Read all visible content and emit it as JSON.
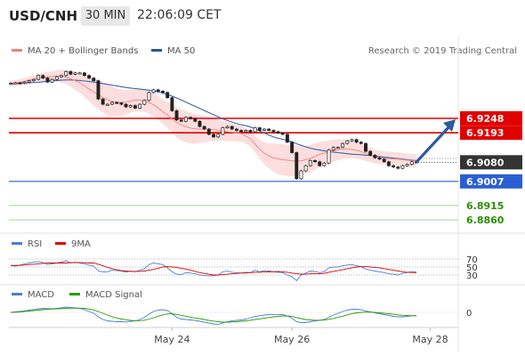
{
  "header": {
    "symbol": "USD/CNH",
    "timeframe": "30 MIN",
    "time": "22:06:09 CET"
  },
  "legend_main": [
    {
      "label": "MA 20 + Bollinger Bands",
      "color": "#f08080"
    },
    {
      "label": "MA 50",
      "color": "#2a5599"
    }
  ],
  "legend_rsi": [
    {
      "label": "RSI",
      "color": "#4a7fd4"
    },
    {
      "label": "9MA",
      "color": "#e00000"
    }
  ],
  "legend_macd": [
    {
      "label": "MACD",
      "color": "#4a7fd4"
    },
    {
      "label": "MACD Signal",
      "color": "#2a9d00"
    }
  ],
  "credit": "Research © 2019 Trading Central",
  "chart_data": {
    "type": "candlestick",
    "price_range": [
      6.88,
      6.944
    ],
    "levels": [
      {
        "value": 6.9248,
        "label": "6.9248",
        "color": "#e00000",
        "kind": "resistance"
      },
      {
        "value": 6.9193,
        "label": "6.9193",
        "color": "#e00000",
        "kind": "resistance"
      },
      {
        "value": 6.908,
        "label": "6.9080",
        "color": "#333333",
        "kind": "current"
      },
      {
        "value": 6.9007,
        "label": "6.9007",
        "color": "#2a5fd4",
        "kind": "pivot"
      },
      {
        "value": 6.8915,
        "label": "6.8915",
        "color": "#2a8f00",
        "kind": "support"
      },
      {
        "value": 6.886,
        "label": "6.8860",
        "color": "#2a8f00",
        "kind": "support"
      }
    ],
    "x_labels": [
      {
        "label": "May 24",
        "index": 35
      },
      {
        "label": "May 26",
        "index": 61
      },
      {
        "label": "May 28",
        "index": 91
      }
    ],
    "close": [
      6.9383,
      6.9384,
      6.9382,
      6.9387,
      6.9392,
      6.9397,
      6.9412,
      6.9402,
      6.9387,
      6.9397,
      6.9407,
      6.9412,
      6.9427,
      6.9417,
      6.9422,
      6.9422,
      6.9412,
      6.9402,
      6.9392,
      6.9322,
      6.9302,
      6.9302,
      6.9309,
      6.9307,
      6.9302,
      6.9292,
      6.9297,
      6.9287,
      6.9302,
      6.9317,
      6.9347,
      6.9357,
      6.9352,
      6.9347,
      6.9327,
      6.9277,
      6.9242,
      6.9237,
      6.9252,
      6.9247,
      6.9237,
      6.9217,
      6.9207,
      6.9187,
      6.9177,
      6.9187,
      6.9212,
      6.9217,
      6.9207,
      6.9202,
      6.9197,
      6.9202,
      6.9197,
      6.9212,
      6.9202,
      6.9207,
      6.9202,
      6.9197,
      6.9192,
      6.9187,
      6.9157,
      6.9117,
      6.9017,
      6.9047,
      6.9067,
      6.9087,
      6.9082,
      6.9067,
      6.9077,
      6.9127,
      6.9137,
      6.9137,
      6.9152,
      6.9162,
      6.9167,
      6.9157,
      6.9152,
      6.9122,
      6.9107,
      6.9097,
      6.9092,
      6.9082,
      6.9067,
      6.9062,
      6.9057,
      6.9067,
      6.9072,
      6.9082,
      6.908
    ],
    "ma20": [
      6.9382,
      6.9383,
      6.9386,
      6.939,
      6.9394,
      6.9398,
      6.9402,
      6.9404,
      6.9406,
      6.9408,
      6.941,
      6.941,
      6.9406,
      6.94,
      6.9392,
      6.9384,
      6.9372,
      6.936,
      6.9349,
      6.9339,
      6.9328,
      6.9319,
      6.9313,
      6.931,
      6.9309,
      6.931,
      6.9314,
      6.9318,
      6.9318,
      6.9315,
      6.9309,
      6.93,
      6.9288,
      6.9273,
      6.9261,
      6.9246,
      6.9233,
      6.9223,
      6.9216,
      6.9211,
      6.9208,
      6.9207,
      6.9207,
      6.9206,
      6.9205,
      6.9203,
      6.92,
      6.9197,
      6.9195,
      6.9192,
      6.919,
      6.918,
      6.917,
      6.915,
      6.913,
      6.9115,
      6.9105,
      6.9097,
      6.9093,
      6.909,
      6.9088,
      6.9086,
      6.9085,
      6.9086,
      6.909,
      6.9095,
      6.9102,
      6.911,
      6.9115,
      6.912,
      6.9124,
      6.9128,
      6.913,
      6.9131,
      6.9129,
      6.9126,
      6.9121,
      6.9114,
      6.9108,
      6.9102,
      6.9098,
      6.9096,
      6.9094,
      6.9093,
      6.9092,
      6.909,
      6.9088,
      6.9086,
      6.9085
    ],
    "band_width": [
      0.001,
      0.0011,
      0.0012,
      0.0013,
      0.0014,
      0.0015,
      0.0017,
      0.0018,
      0.0019,
      0.002,
      0.0022,
      0.0024,
      0.0027,
      0.003,
      0.0034,
      0.0038,
      0.0042,
      0.0047,
      0.0052,
      0.0056,
      0.0058,
      0.0058,
      0.0056,
      0.0053,
      0.005,
      0.0047,
      0.0044,
      0.0043,
      0.0043,
      0.0043,
      0.0043,
      0.0044,
      0.0045,
      0.0047,
      0.005,
      0.0054,
      0.0057,
      0.006,
      0.006,
      0.0059,
      0.0057,
      0.0054,
      0.005,
      0.0046,
      0.0043,
      0.004,
      0.0038,
      0.0036,
      0.0034,
      0.0032,
      0.0031,
      0.003,
      0.003,
      0.0032,
      0.0036,
      0.0042,
      0.0048,
      0.0054,
      0.0058,
      0.006,
      0.0061,
      0.006,
      0.0058,
      0.0056,
      0.0054,
      0.0052,
      0.005,
      0.0048,
      0.0046,
      0.0044,
      0.0042,
      0.004,
      0.0038,
      0.0036,
      0.0034,
      0.0032,
      0.003,
      0.0029,
      0.0028,
      0.0027,
      0.0026,
      0.0026,
      0.0026,
      0.0026,
      0.0026,
      0.0026,
      0.0026,
      0.0026,
      0.0026
    ],
    "ma50": [
      6.938,
      6.9381,
      6.9382,
      6.9383,
      6.9384,
      6.9385,
      6.9386,
      6.9388,
      6.939,
      6.9392,
      6.9393,
      6.9394,
      6.9395,
      6.9395,
      6.9394,
      6.9393,
      6.9391,
      6.9389,
      6.9387,
      6.9384,
      6.9381,
      6.9378,
      6.9375,
      6.9372,
      6.9369,
      6.9366,
      6.9364,
      6.9362,
      6.936,
      6.9358,
      6.9356,
      6.9353,
      6.9349,
      6.9345,
      6.9339,
      6.9333,
      6.9326,
      6.9318,
      6.931,
      6.9302,
      6.9294,
      6.9286,
      6.9278,
      6.927,
      6.9262,
      6.9254,
      6.9246,
      6.924,
      6.9234,
      6.9228,
      6.9224,
      6.922,
      6.9215,
      6.9208,
      6.92,
      6.9192,
      6.9184,
      6.9177,
      6.9172,
      6.9168,
      6.9164,
      6.9158,
      6.9151,
      6.9145,
      6.9139,
      6.9134,
      6.913,
      6.9127,
      6.9124,
      6.9121,
      6.9119,
      6.9117,
      6.9115,
      6.9113,
      6.9111,
      6.911,
      6.9109,
      6.9107,
      6.9106,
      6.9104,
      6.9102,
      6.91,
      6.9098,
      6.9096,
      6.9094,
      6.9092,
      6.909,
      6.9088,
      6.9086
    ],
    "forecast_arrow": {
      "from_index": 88,
      "from_value": 6.9081,
      "to_value": 6.9248
    },
    "rsi": {
      "levels": [
        70,
        50,
        30
      ],
      "range": [
        0,
        100
      ],
      "rsi": [
        54,
        52,
        55,
        58,
        60,
        62,
        63,
        61,
        56,
        58,
        60,
        62,
        66,
        60,
        62,
        60,
        58,
        55,
        52,
        40,
        38,
        38,
        42,
        41,
        40,
        37,
        40,
        38,
        42,
        46,
        56,
        60,
        58,
        56,
        48,
        38,
        32,
        31,
        36,
        35,
        33,
        30,
        29,
        28,
        28,
        30,
        38,
        40,
        37,
        36,
        35,
        37,
        36,
        42,
        38,
        41,
        40,
        38,
        37,
        36,
        30,
        26,
        16,
        30,
        35,
        40,
        39,
        36,
        38,
        48,
        50,
        50,
        53,
        55,
        56,
        53,
        51,
        45,
        42,
        40,
        38,
        36,
        33,
        32,
        30,
        34,
        36,
        39,
        38
      ],
      "ma9": [
        54,
        54,
        54,
        55,
        56,
        57,
        58,
        59,
        60,
        60,
        60,
        60,
        60,
        61,
        61,
        61,
        61,
        60,
        60,
        57,
        53,
        49,
        46,
        43,
        41,
        40,
        39,
        39,
        39,
        40,
        42,
        44,
        47,
        50,
        51,
        50,
        49,
        47,
        45,
        42,
        39,
        36,
        34,
        32,
        30,
        30,
        31,
        32,
        33,
        34,
        35,
        35,
        36,
        37,
        37,
        38,
        38,
        38,
        39,
        38,
        37,
        35,
        33,
        32,
        32,
        33,
        33,
        33,
        34,
        37,
        39,
        41,
        43,
        46,
        48,
        50,
        51,
        51,
        50,
        49,
        48,
        46,
        44,
        42,
        40,
        38,
        37,
        36,
        36
      ]
    },
    "macd": {
      "zero_label": "0",
      "macd": [
        0,
        0.2,
        0.4,
        0.7,
        1.0,
        1.3,
        1.6,
        1.8,
        1.7,
        1.6,
        1.8,
        2.0,
        2.4,
        2.2,
        2.0,
        1.8,
        1.2,
        0.4,
        -0.4,
        -2.0,
        -3.2,
        -3.8,
        -4.0,
        -4.2,
        -4.2,
        -4.3,
        -4.0,
        -3.8,
        -3.2,
        -2.2,
        -0.8,
        0.4,
        1.0,
        1.2,
        0.8,
        -0.6,
        -2.2,
        -3.0,
        -3.2,
        -3.4,
        -3.6,
        -4.0,
        -4.4,
        -4.8,
        -5.2,
        -5.4,
        -4.8,
        -4.2,
        -3.8,
        -3.6,
        -3.4,
        -3.0,
        -2.4,
        -1.8,
        -1.5,
        -1.2,
        -1.0,
        -0.9,
        -0.9,
        -1.0,
        -1.6,
        -2.6,
        -4.2,
        -4.6,
        -4.6,
        -4.2,
        -3.8,
        -3.6,
        -3.2,
        -2.2,
        -1.2,
        -0.4,
        0.4,
        1.0,
        1.4,
        1.4,
        1.2,
        0.6,
        0.2,
        -0.2,
        -0.6,
        -1.0,
        -1.4,
        -1.8,
        -2.0,
        -2.0,
        -1.8,
        -1.5,
        -1.3
      ],
      "signal": [
        0,
        0.1,
        0.2,
        0.4,
        0.6,
        0.8,
        1.0,
        1.2,
        1.4,
        1.5,
        1.6,
        1.7,
        1.8,
        1.9,
        1.9,
        1.9,
        1.8,
        1.5,
        1.1,
        0.4,
        -0.4,
        -1.2,
        -1.9,
        -2.5,
        -3.0,
        -3.3,
        -3.6,
        -3.7,
        -3.7,
        -3.5,
        -3.0,
        -2.4,
        -1.7,
        -1.1,
        -0.7,
        -0.6,
        -0.9,
        -1.3,
        -1.7,
        -2.1,
        -2.5,
        -2.8,
        -3.2,
        -3.6,
        -3.9,
        -4.2,
        -4.4,
        -4.4,
        -4.3,
        -4.2,
        -4.0,
        -3.8,
        -3.5,
        -3.2,
        -2.9,
        -2.6,
        -2.3,
        -2.0,
        -1.8,
        -1.6,
        -1.6,
        -1.8,
        -2.3,
        -2.8,
        -3.2,
        -3.4,
        -3.5,
        -3.5,
        -3.4,
        -3.1,
        -2.7,
        -2.2,
        -1.7,
        -1.1,
        -0.6,
        -0.2,
        0.0,
        0.1,
        0.1,
        0.0,
        -0.2,
        -0.4,
        -0.6,
        -0.8,
        -1.1,
        -1.3,
        -1.4,
        -1.5,
        -1.5
      ]
    }
  }
}
